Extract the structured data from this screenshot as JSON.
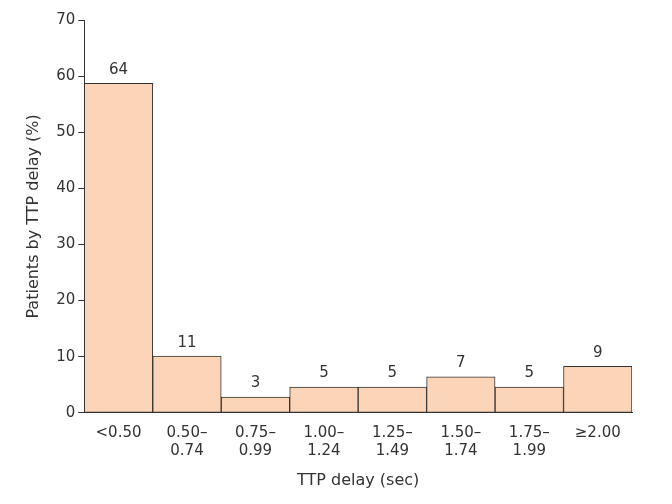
{
  "chart_data": {
    "type": "bar",
    "x_label": "TTP delay (sec)",
    "y_label": "Patients by TTP delay (%)",
    "categories": [
      "<0.50",
      "0.50–\n0.74",
      "0.75–\n0.99",
      "1.00–\n1.24",
      "1.25–\n1.49",
      "1.50–\n1.74",
      "1.75–\n1.99",
      "≥2.00"
    ],
    "values": [
      58.7,
      10.1,
      2.8,
      4.6,
      4.6,
      6.4,
      4.6,
      8.3
    ],
    "counts": [
      64,
      11,
      3,
      5,
      5,
      7,
      5,
      9
    ],
    "color": "#fcd5b8",
    "ylim": [
      0,
      70
    ],
    "yticks": [
      0,
      10,
      20,
      30,
      40,
      50,
      60,
      70
    ],
    "grid": false
  }
}
